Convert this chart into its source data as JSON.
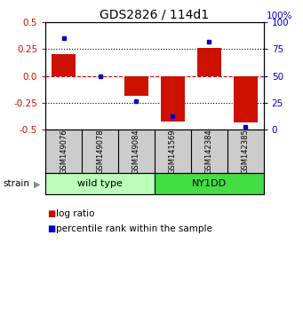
{
  "title": "GDS2826 / 114d1",
  "samples": [
    "GSM149076",
    "GSM149078",
    "GSM149084",
    "GSM141569",
    "GSM142384",
    "GSM142385"
  ],
  "log_ratios": [
    0.2,
    0.0,
    -0.18,
    -0.42,
    0.26,
    -0.43
  ],
  "percentile_ranks": [
    85,
    50,
    27,
    13,
    82,
    3
  ],
  "groups": [
    {
      "label": "wild type",
      "start": 0,
      "end": 3,
      "color": "#bbffbb"
    },
    {
      "label": "NY1DD",
      "start": 3,
      "end": 6,
      "color": "#44dd44"
    }
  ],
  "ylim": [
    -0.5,
    0.5
  ],
  "yticks_left": [
    -0.5,
    -0.25,
    0.0,
    0.25,
    0.5
  ],
  "yticks_right": [
    0,
    25,
    50,
    75,
    100
  ],
  "bar_color": "#cc1100",
  "dot_color": "#0000cc",
  "hline0_color": "#cc0000",
  "hline_color": "#000000",
  "background_color": "#ffffff",
  "sample_bg_color": "#cccccc",
  "title_fontsize": 10,
  "tick_fontsize": 7.5,
  "sample_fontsize": 6,
  "group_fontsize": 8,
  "legend_fontsize": 7.5,
  "strain_label": "strain",
  "legend_log_ratio": "log ratio",
  "legend_percentile": "percentile rank within the sample"
}
